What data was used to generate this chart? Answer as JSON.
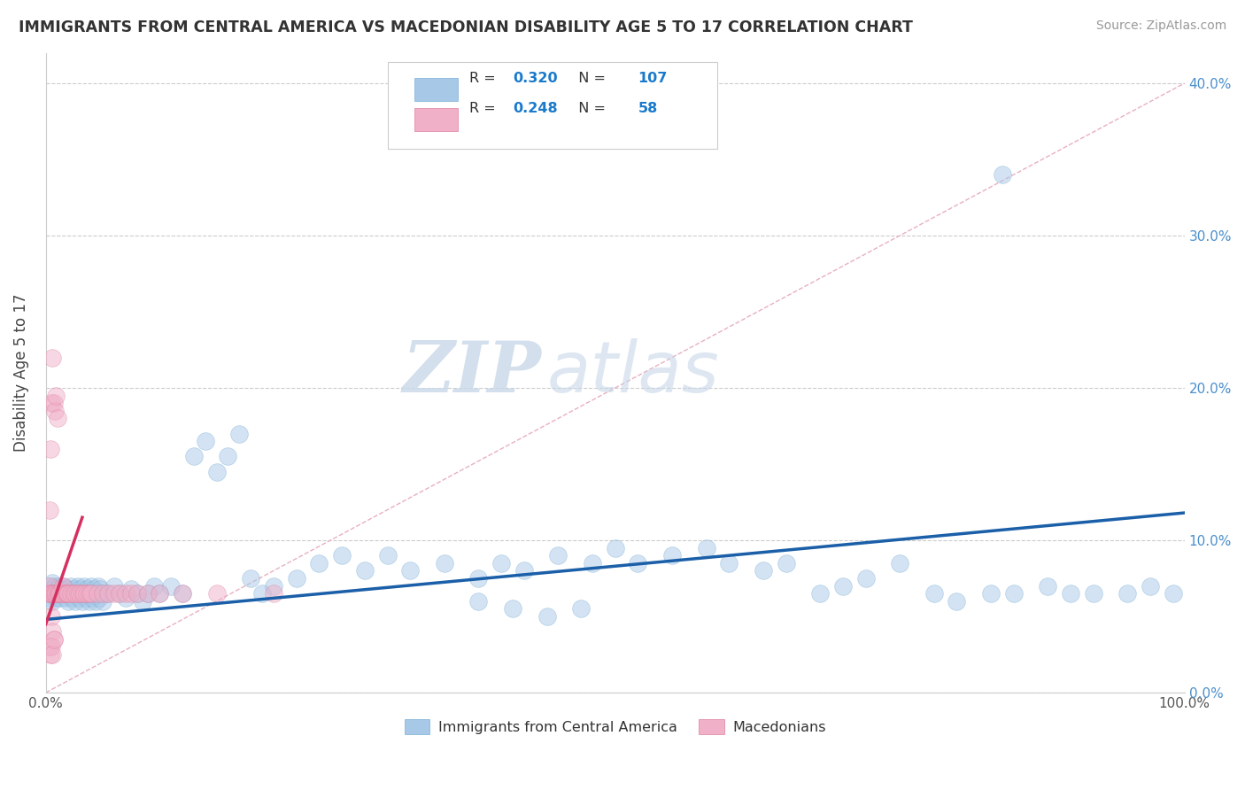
{
  "title": "IMMIGRANTS FROM CENTRAL AMERICA VS MACEDONIAN DISABILITY AGE 5 TO 17 CORRELATION CHART",
  "source": "Source: ZipAtlas.com",
  "ylabel": "Disability Age 5 to 17",
  "xlim": [
    0.0,
    1.0
  ],
  "ylim": [
    0.0,
    0.42
  ],
  "xticks": [
    0.0,
    0.1,
    0.2,
    0.3,
    0.4,
    0.5,
    0.6,
    0.7,
    0.8,
    0.9,
    1.0
  ],
  "xtick_labels": [
    "0.0%",
    "",
    "",
    "",
    "",
    "",
    "",
    "",
    "",
    "",
    "100.0%"
  ],
  "yticks": [
    0.0,
    0.1,
    0.2,
    0.3,
    0.4
  ],
  "ytick_labels_left": [
    "",
    "",
    "",
    "",
    ""
  ],
  "ytick_labels_right": [
    "0.0%",
    "10.0%",
    "20.0%",
    "30.0%",
    "40.0%"
  ],
  "blue_R": 0.32,
  "blue_N": 107,
  "pink_R": 0.248,
  "pink_N": 58,
  "legend_blue_label": "Immigrants from Central America",
  "legend_pink_label": "Macedonians",
  "watermark_zip": "ZIP",
  "watermark_atlas": "atlas",
  "blue_color": "#a8c8e8",
  "blue_edge_color": "#7aaed4",
  "pink_color": "#f0b0c8",
  "pink_edge_color": "#e080a0",
  "blue_line_color": "#1a5fa8",
  "pink_line_color": "#d43060",
  "ref_line_color": "#e8b0c0",
  "scatter_size": 200,
  "scatter_alpha": 0.5,
  "blue_trend_x": [
    0.0,
    1.0
  ],
  "blue_trend_y": [
    0.048,
    0.118
  ],
  "pink_trend_x": [
    0.0,
    0.032
  ],
  "pink_trend_y": [
    0.045,
    0.115
  ],
  "ref_line_x": [
    0.0,
    1.0
  ],
  "ref_line_y": [
    0.0,
    0.4
  ],
  "blue_x": [
    0.002,
    0.003,
    0.004,
    0.005,
    0.006,
    0.006,
    0.007,
    0.008,
    0.009,
    0.01,
    0.011,
    0.012,
    0.013,
    0.014,
    0.015,
    0.016,
    0.017,
    0.018,
    0.019,
    0.02,
    0.021,
    0.022,
    0.023,
    0.024,
    0.025,
    0.026,
    0.027,
    0.028,
    0.029,
    0.03,
    0.031,
    0.032,
    0.033,
    0.034,
    0.035,
    0.036,
    0.037,
    0.038,
    0.039,
    0.04,
    0.041,
    0.042,
    0.043,
    0.044,
    0.045,
    0.046,
    0.047,
    0.048,
    0.049,
    0.05,
    0.055,
    0.06,
    0.065,
    0.07,
    0.075,
    0.08,
    0.085,
    0.09,
    0.095,
    0.1,
    0.11,
    0.12,
    0.13,
    0.14,
    0.15,
    0.16,
    0.17,
    0.18,
    0.19,
    0.2,
    0.22,
    0.24,
    0.26,
    0.28,
    0.3,
    0.32,
    0.35,
    0.38,
    0.4,
    0.42,
    0.45,
    0.48,
    0.5,
    0.52,
    0.55,
    0.58,
    0.6,
    0.63,
    0.65,
    0.68,
    0.7,
    0.72,
    0.75,
    0.78,
    0.8,
    0.83,
    0.85,
    0.88,
    0.9,
    0.92,
    0.95,
    0.97,
    0.99,
    0.84,
    0.38,
    0.41,
    0.44,
    0.47
  ],
  "blue_y": [
    0.065,
    0.07,
    0.062,
    0.068,
    0.06,
    0.072,
    0.065,
    0.07,
    0.062,
    0.068,
    0.065,
    0.07,
    0.062,
    0.068,
    0.065,
    0.07,
    0.062,
    0.068,
    0.065,
    0.06,
    0.065,
    0.07,
    0.062,
    0.068,
    0.065,
    0.06,
    0.065,
    0.07,
    0.062,
    0.068,
    0.065,
    0.06,
    0.065,
    0.07,
    0.062,
    0.068,
    0.065,
    0.06,
    0.065,
    0.07,
    0.062,
    0.068,
    0.065,
    0.06,
    0.065,
    0.07,
    0.062,
    0.068,
    0.065,
    0.06,
    0.065,
    0.07,
    0.065,
    0.062,
    0.068,
    0.065,
    0.06,
    0.065,
    0.07,
    0.065,
    0.07,
    0.065,
    0.155,
    0.165,
    0.145,
    0.155,
    0.17,
    0.075,
    0.065,
    0.07,
    0.075,
    0.085,
    0.09,
    0.08,
    0.09,
    0.08,
    0.085,
    0.075,
    0.085,
    0.08,
    0.09,
    0.085,
    0.095,
    0.085,
    0.09,
    0.095,
    0.085,
    0.08,
    0.085,
    0.065,
    0.07,
    0.075,
    0.085,
    0.065,
    0.06,
    0.065,
    0.065,
    0.07,
    0.065,
    0.065,
    0.065,
    0.07,
    0.065,
    0.34,
    0.06,
    0.055,
    0.05,
    0.055
  ],
  "pink_x": [
    0.002,
    0.003,
    0.003,
    0.004,
    0.004,
    0.005,
    0.005,
    0.006,
    0.006,
    0.007,
    0.007,
    0.008,
    0.008,
    0.009,
    0.009,
    0.01,
    0.01,
    0.011,
    0.012,
    0.013,
    0.014,
    0.015,
    0.016,
    0.017,
    0.018,
    0.019,
    0.02,
    0.022,
    0.024,
    0.026,
    0.028,
    0.03,
    0.032,
    0.034,
    0.036,
    0.038,
    0.04,
    0.045,
    0.05,
    0.055,
    0.06,
    0.065,
    0.07,
    0.075,
    0.08,
    0.09,
    0.1,
    0.12,
    0.15,
    0.2,
    0.005,
    0.006,
    0.007,
    0.003,
    0.004,
    0.005,
    0.006,
    0.007
  ],
  "pink_y": [
    0.065,
    0.12,
    0.07,
    0.16,
    0.065,
    0.19,
    0.065,
    0.22,
    0.065,
    0.19,
    0.065,
    0.185,
    0.065,
    0.195,
    0.065,
    0.18,
    0.065,
    0.065,
    0.065,
    0.065,
    0.065,
    0.07,
    0.065,
    0.065,
    0.065,
    0.065,
    0.065,
    0.065,
    0.065,
    0.065,
    0.065,
    0.065,
    0.065,
    0.065,
    0.065,
    0.065,
    0.065,
    0.065,
    0.065,
    0.065,
    0.065,
    0.065,
    0.065,
    0.065,
    0.065,
    0.065,
    0.065,
    0.065,
    0.065,
    0.065,
    0.05,
    0.04,
    0.035,
    0.03,
    0.025,
    0.03,
    0.025,
    0.035
  ]
}
